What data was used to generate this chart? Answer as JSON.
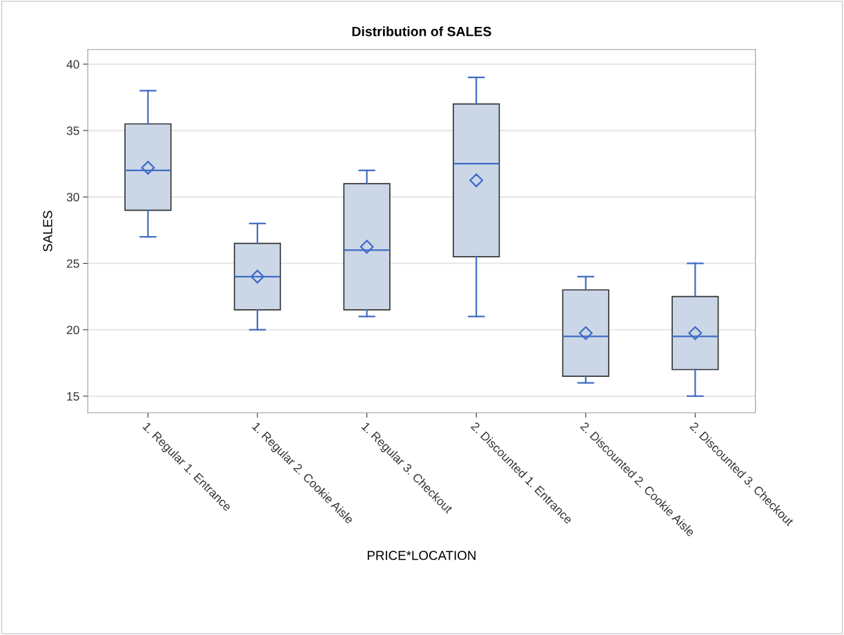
{
  "chart_data": {
    "type": "box",
    "title": "Distribution of SALES",
    "xlabel": "PRICE*LOCATION",
    "ylabel": "SALES",
    "categories": [
      "1. Regular 1. Entrance",
      "1. Regular 2. Cookie Aisle",
      "1. Regular 3. Checkout",
      "2. Discounted 1. Entrance",
      "2. Discounted 2. Cookie Aisle",
      "2. Discounted 3. Checkout"
    ],
    "boxes": [
      {
        "low": 27,
        "q1": 29,
        "median": 32,
        "q3": 35.5,
        "high": 38,
        "mean": 32.2
      },
      {
        "low": 20,
        "q1": 21.5,
        "median": 24,
        "q3": 26.5,
        "high": 28,
        "mean": 24
      },
      {
        "low": 21,
        "q1": 21.5,
        "median": 26,
        "q3": 31,
        "high": 32,
        "mean": 26.25
      },
      {
        "low": 21,
        "q1": 25.5,
        "median": 32.5,
        "q3": 37,
        "high": 39,
        "mean": 31.25
      },
      {
        "low": 16,
        "q1": 16.5,
        "median": 19.5,
        "q3": 23,
        "high": 24,
        "mean": 19.75
      },
      {
        "low": 15,
        "q1": 17,
        "median": 19.5,
        "q3": 22.5,
        "high": 25,
        "mean": 19.75
      }
    ],
    "color": "#cbd7e7",
    "ylim": [
      13.75,
      41.1
    ],
    "yticks": [
      15,
      20,
      25,
      30,
      35,
      40
    ],
    "grid": "y",
    "legend": false
  }
}
